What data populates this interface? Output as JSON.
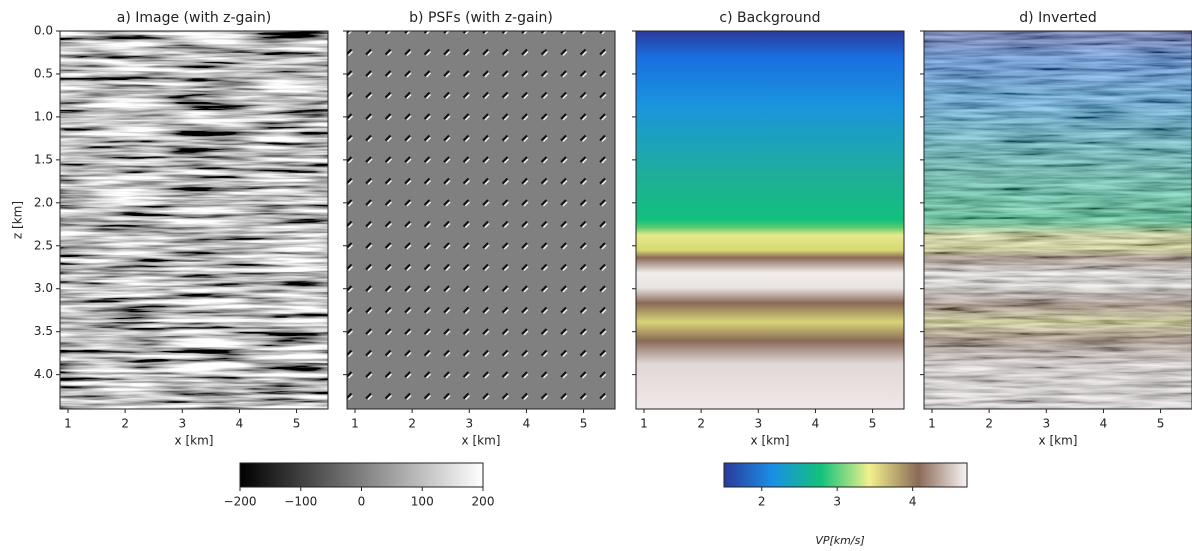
{
  "chart_data": [
    {
      "type": "image",
      "title": "a) Image (with z-gain)",
      "xlabel": "x [km]",
      "ylabel": "z [km]",
      "xlim": [
        0.86,
        5.55
      ],
      "ylim": [
        4.4,
        0.0
      ],
      "xticks": [
        1,
        2,
        3,
        4,
        5
      ],
      "yticks": [
        {
          "value": 0,
          "label": "0.0"
        },
        0.5,
        {
          "value": 1,
          "label": "1.0"
        },
        1.5,
        {
          "value": 2,
          "label": "2.0"
        },
        2.5,
        {
          "value": 3,
          "label": "3.0"
        },
        3.5,
        {
          "value": 4,
          "label": "4.0"
        }
      ],
      "fill": "seismic"
    },
    {
      "type": "image",
      "title": "b) PSFs (with z-gain)",
      "xlabel": "x [km]",
      "xlim": [
        0.86,
        5.55
      ],
      "ylim": [
        4.4,
        0.0
      ],
      "xticks": [
        1,
        2,
        3,
        4,
        5
      ],
      "yticks": [
        0,
        0.5,
        1,
        1.5,
        2,
        2.5,
        3,
        3.5,
        4
      ],
      "show_ytick_labels": false,
      "fill": "psf"
    },
    {
      "type": "image",
      "title": "c) Background",
      "xlabel": "x [km]",
      "xlim": [
        0.86,
        5.55
      ],
      "ylim": [
        4.4,
        0.0
      ],
      "xticks": [
        1,
        2,
        3,
        4,
        5
      ],
      "yticks": [
        0,
        0.5,
        1,
        1.5,
        2,
        2.5,
        3,
        3.5,
        4
      ],
      "show_ytick_labels": false,
      "fill": "background"
    },
    {
      "type": "image",
      "title": "d) Inverted",
      "xlabel": "x [km]",
      "xlim": [
        0.86,
        5.55
      ],
      "ylim": [
        4.4,
        0.0
      ],
      "xticks": [
        1,
        2,
        3,
        4,
        5
      ],
      "yticks": [
        0,
        0.5,
        1,
        1.5,
        2,
        2.5,
        3,
        3.5,
        4
      ],
      "show_ytick_labels": false,
      "fill": "inverted"
    },
    {
      "type": "colorbar",
      "vlim": [
        -200,
        200
      ],
      "ticks": [
        {
          "value": -200,
          "label": "−200"
        },
        {
          "value": -100,
          "label": "−100"
        },
        0,
        100,
        200
      ],
      "colors": [
        "#000000",
        "#ffffff"
      ]
    },
    {
      "type": "colorbar",
      "vlim": [
        1.5,
        4.72
      ],
      "ticks": [
        2,
        3,
        4
      ],
      "label": "VP[km/s]",
      "colors": [
        "#2b3a9c",
        "#1a8fe6",
        "#12c27a",
        "#f2f08c",
        "#8a6a58",
        "#f8f4f4"
      ]
    }
  ]
}
